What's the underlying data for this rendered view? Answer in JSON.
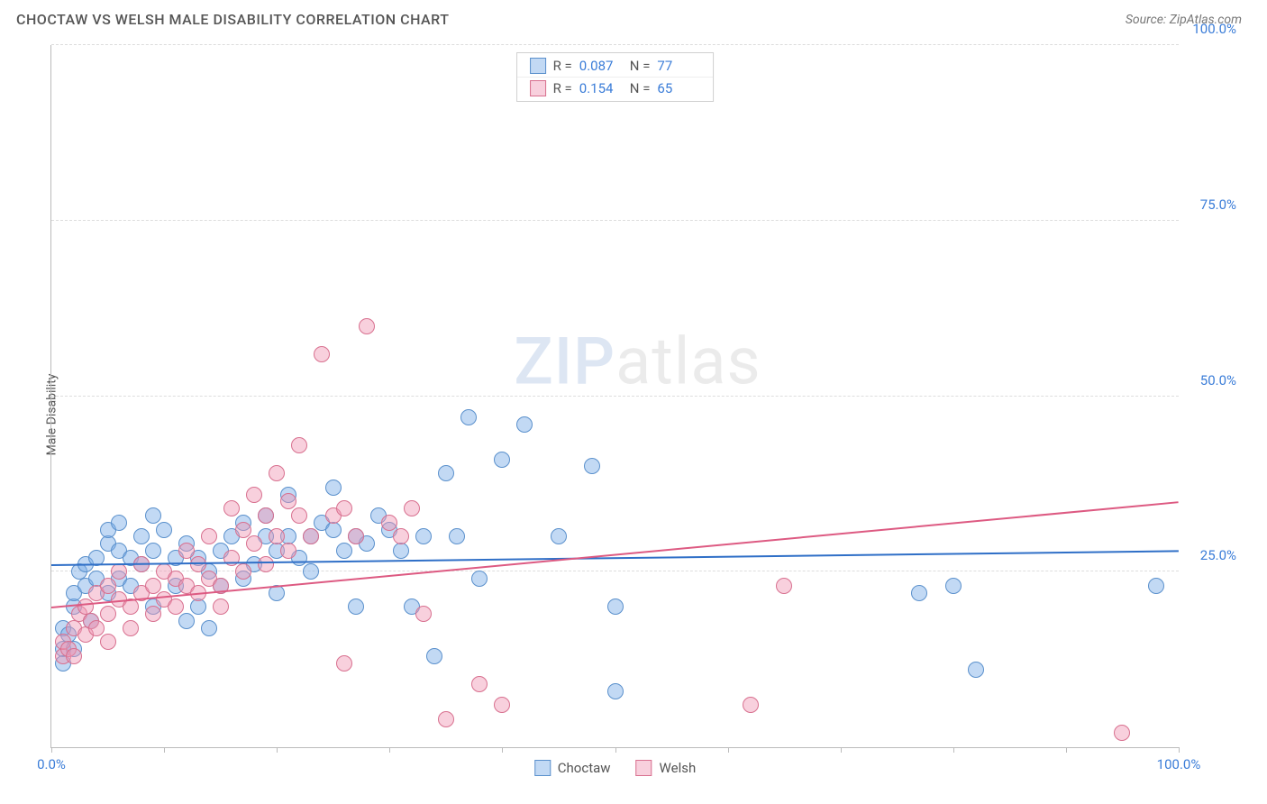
{
  "title": "CHOCTAW VS WELSH MALE DISABILITY CORRELATION CHART",
  "source": "Source: ZipAtlas.com",
  "y_axis": {
    "label": "Male Disability"
  },
  "axes": {
    "xlim": [
      0,
      100
    ],
    "ylim": [
      0,
      100
    ],
    "x_ticks": [
      0,
      10,
      20,
      30,
      40,
      50,
      60,
      70,
      80,
      90,
      100
    ],
    "x_tick_labels": {
      "0": "0.0%",
      "100": "100.0%"
    },
    "y_ticks": [
      25,
      50,
      75,
      100
    ],
    "y_tick_labels": {
      "25": "25.0%",
      "50": "50.0%",
      "75": "75.0%",
      "100": "100.0%"
    },
    "grid_color": "#dddddd",
    "axis_color": "#bbbbbb",
    "tick_label_color": "#3b7dd8",
    "tick_label_fontsize": 15
  },
  "watermark": {
    "text_a": "ZIP",
    "text_b": "atlas",
    "color_a": "rgba(100,140,200,0.22)",
    "color_b": "rgba(120,120,120,0.15)",
    "fontsize": 72
  },
  "series": [
    {
      "key": "choctaw",
      "label": "Choctaw",
      "fill": "rgba(120,170,230,0.45)",
      "stroke": "#5a90cc",
      "marker_radius": 9,
      "R": "0.087",
      "N": "77",
      "trend": {
        "y_at_x0": 26,
        "y_at_x100": 28,
        "color": "#2f6fc7",
        "width": 2
      },
      "points": [
        [
          1,
          14
        ],
        [
          1,
          17
        ],
        [
          1,
          12
        ],
        [
          1.5,
          16
        ],
        [
          2,
          20
        ],
        [
          2,
          14
        ],
        [
          2,
          22
        ],
        [
          2.5,
          25
        ],
        [
          3,
          23
        ],
        [
          3,
          26
        ],
        [
          3.5,
          18
        ],
        [
          4,
          27
        ],
        [
          4,
          24
        ],
        [
          5,
          29
        ],
        [
          5,
          22
        ],
        [
          5,
          31
        ],
        [
          6,
          28
        ],
        [
          6,
          24
        ],
        [
          6,
          32
        ],
        [
          7,
          27
        ],
        [
          7,
          23
        ],
        [
          8,
          30
        ],
        [
          8,
          26
        ],
        [
          9,
          28
        ],
        [
          9,
          20
        ],
        [
          9,
          33
        ],
        [
          10,
          31
        ],
        [
          11,
          27
        ],
        [
          11,
          23
        ],
        [
          12,
          18
        ],
        [
          12,
          29
        ],
        [
          13,
          27
        ],
        [
          13,
          20
        ],
        [
          14,
          25
        ],
        [
          14,
          17
        ],
        [
          15,
          28
        ],
        [
          15,
          23
        ],
        [
          16,
          30
        ],
        [
          17,
          24
        ],
        [
          17,
          32
        ],
        [
          18,
          26
        ],
        [
          19,
          30
        ],
        [
          19,
          33
        ],
        [
          20,
          28
        ],
        [
          20,
          22
        ],
        [
          21,
          36
        ],
        [
          21,
          30
        ],
        [
          22,
          27
        ],
        [
          23,
          30
        ],
        [
          23,
          25
        ],
        [
          24,
          32
        ],
        [
          25,
          31
        ],
        [
          25,
          37
        ],
        [
          26,
          28
        ],
        [
          27,
          30
        ],
        [
          27,
          20
        ],
        [
          28,
          29
        ],
        [
          29,
          33
        ],
        [
          30,
          31
        ],
        [
          31,
          28
        ],
        [
          32,
          20
        ],
        [
          33,
          30
        ],
        [
          34,
          13
        ],
        [
          35,
          39
        ],
        [
          36,
          30
        ],
        [
          37,
          47
        ],
        [
          38,
          24
        ],
        [
          40,
          41
        ],
        [
          42,
          46
        ],
        [
          45,
          30
        ],
        [
          48,
          40
        ],
        [
          50,
          8
        ],
        [
          50,
          20
        ],
        [
          77,
          22
        ],
        [
          80,
          23
        ],
        [
          82,
          11
        ],
        [
          98,
          23
        ]
      ]
    },
    {
      "key": "welsh",
      "label": "Welsh",
      "fill": "rgba(240,150,180,0.45)",
      "stroke": "#d8708f",
      "marker_radius": 9,
      "R": "0.154",
      "N": "65",
      "trend": {
        "y_at_x0": 20,
        "y_at_x100": 35,
        "color": "#dd5a82",
        "width": 2
      },
      "points": [
        [
          1,
          13
        ],
        [
          1,
          15
        ],
        [
          1.5,
          14
        ],
        [
          2,
          17
        ],
        [
          2,
          13
        ],
        [
          2.5,
          19
        ],
        [
          3,
          16
        ],
        [
          3,
          20
        ],
        [
          3.5,
          18
        ],
        [
          4,
          22
        ],
        [
          4,
          17
        ],
        [
          5,
          23
        ],
        [
          5,
          19
        ],
        [
          5,
          15
        ],
        [
          6,
          21
        ],
        [
          6,
          25
        ],
        [
          7,
          20
        ],
        [
          7,
          17
        ],
        [
          8,
          22
        ],
        [
          8,
          26
        ],
        [
          9,
          23
        ],
        [
          9,
          19
        ],
        [
          10,
          25
        ],
        [
          10,
          21
        ],
        [
          11,
          24
        ],
        [
          11,
          20
        ],
        [
          12,
          28
        ],
        [
          12,
          23
        ],
        [
          13,
          26
        ],
        [
          13,
          22
        ],
        [
          14,
          30
        ],
        [
          14,
          24
        ],
        [
          15,
          23
        ],
        [
          15,
          20
        ],
        [
          16,
          34
        ],
        [
          16,
          27
        ],
        [
          17,
          31
        ],
        [
          17,
          25
        ],
        [
          18,
          36
        ],
        [
          18,
          29
        ],
        [
          19,
          33
        ],
        [
          19,
          26
        ],
        [
          20,
          39
        ],
        [
          20,
          30
        ],
        [
          21,
          35
        ],
        [
          21,
          28
        ],
        [
          22,
          33
        ],
        [
          22,
          43
        ],
        [
          23,
          30
        ],
        [
          24,
          56
        ],
        [
          25,
          33
        ],
        [
          26,
          34
        ],
        [
          26,
          12
        ],
        [
          27,
          30
        ],
        [
          28,
          60
        ],
        [
          30,
          32
        ],
        [
          31,
          30
        ],
        [
          32,
          34
        ],
        [
          33,
          19
        ],
        [
          35,
          4
        ],
        [
          38,
          9
        ],
        [
          40,
          6
        ],
        [
          62,
          6
        ],
        [
          65,
          23
        ],
        [
          95,
          2
        ]
      ]
    }
  ],
  "legend_top": {
    "rows": [
      {
        "series": "choctaw",
        "R_label": "R =",
        "N_label": "N ="
      },
      {
        "series": "welsh",
        "R_label": "R =",
        "N_label": "N ="
      }
    ]
  },
  "legend_bottom": {
    "items": [
      {
        "series": "choctaw"
      },
      {
        "series": "welsh"
      }
    ]
  },
  "colors": {
    "background": "#ffffff",
    "title": "#555555",
    "source": "#777777"
  }
}
